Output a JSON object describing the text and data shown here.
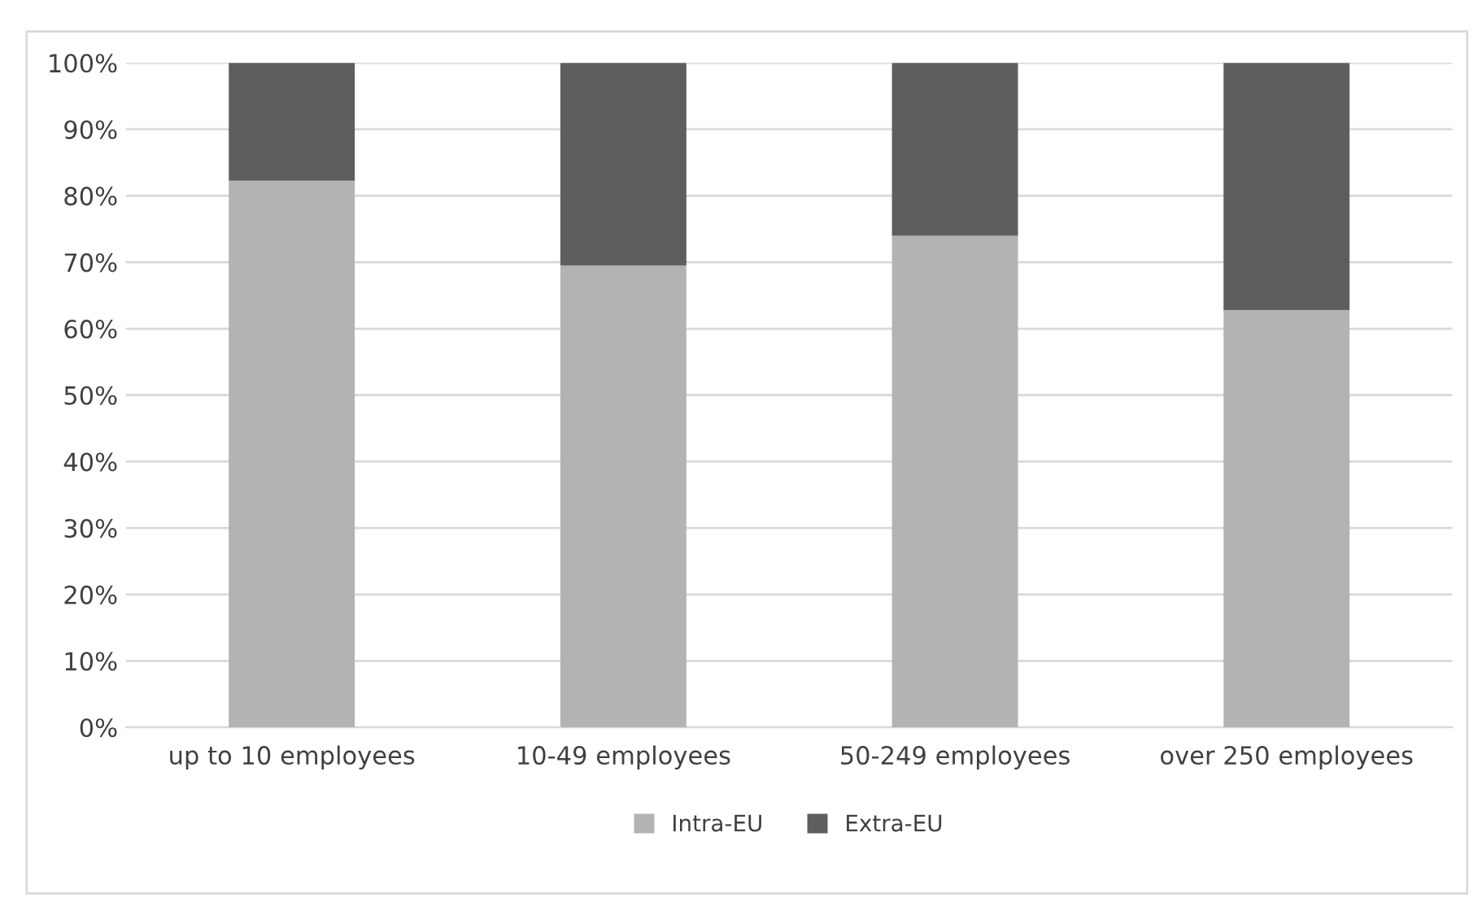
{
  "chart_data": {
    "type": "bar",
    "stacked": true,
    "categories": [
      "up to 10 employees",
      "10-49 employees",
      "50-249 employees",
      "over 250 employees"
    ],
    "series": [
      {
        "name": "Intra-EU",
        "color": "#b3b3b3",
        "values": [
          82.3,
          69.5,
          74.0,
          62.8
        ]
      },
      {
        "name": "Extra-EU",
        "color": "#5e5e5e",
        "values": [
          17.7,
          30.5,
          26.0,
          37.2
        ]
      }
    ],
    "ylim": [
      0,
      100
    ],
    "yticks": [
      {
        "value": 0,
        "label": "0%"
      },
      {
        "value": 10,
        "label": "10%"
      },
      {
        "value": 20,
        "label": "20%"
      },
      {
        "value": 30,
        "label": "30%"
      },
      {
        "value": 40,
        "label": "40%"
      },
      {
        "value": 50,
        "label": "50%"
      },
      {
        "value": 60,
        "label": "60%"
      },
      {
        "value": 70,
        "label": "70%"
      },
      {
        "value": 80,
        "label": "80%"
      },
      {
        "value": 90,
        "label": "90%"
      },
      {
        "value": 100,
        "label": "100%"
      }
    ],
    "grid": "y",
    "legend": "bottom"
  }
}
